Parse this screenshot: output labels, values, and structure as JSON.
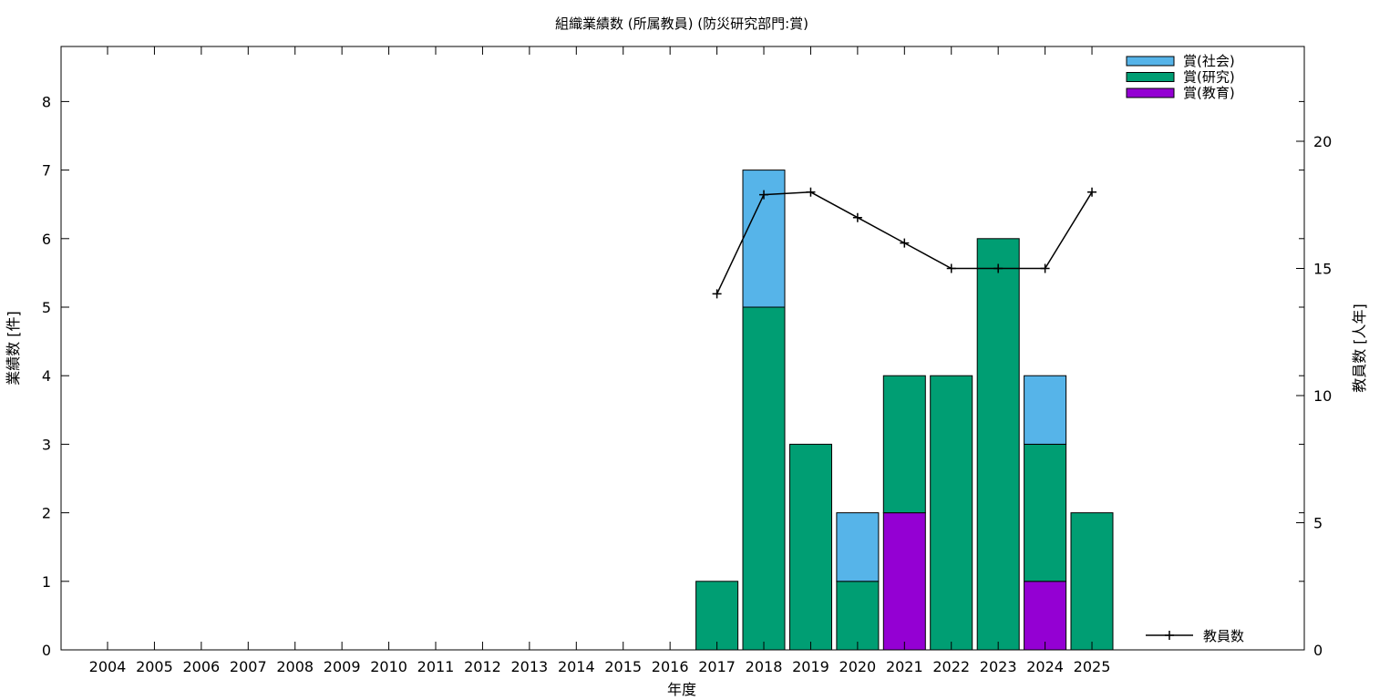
{
  "chart_data": {
    "type": "bar",
    "stacked": true,
    "title": "組織業績数 (所属教員) (防災研究部門:賞)",
    "xlabel": "年度",
    "ylabel": "業績数 [件]",
    "y2label": "教員数 [人年]",
    "ylim": [
      0,
      8.8
    ],
    "y2lim": [
      0,
      24
    ],
    "yticks": [
      0,
      1,
      2,
      3,
      4,
      5,
      6,
      7,
      8
    ],
    "y2ticks": [
      0,
      5,
      10,
      15,
      20
    ],
    "categories": [
      "2004",
      "2005",
      "2006",
      "2007",
      "2008",
      "2009",
      "2010",
      "2011",
      "2012",
      "2013",
      "2014",
      "2015",
      "2016",
      "2017",
      "2018",
      "2019",
      "2020",
      "2021",
      "2022",
      "2023",
      "2024",
      "2025"
    ],
    "series": [
      {
        "name": "賞(教育)",
        "color": "#9400d3",
        "values": [
          0,
          0,
          0,
          0,
          0,
          0,
          0,
          0,
          0,
          0,
          0,
          0,
          0,
          0,
          0,
          0,
          0,
          2,
          0,
          0,
          1,
          0
        ]
      },
      {
        "name": "賞(研究)",
        "color": "#009e73",
        "values": [
          0,
          0,
          0,
          0,
          0,
          0,
          0,
          0,
          0,
          0,
          0,
          0,
          0,
          1,
          5,
          3,
          1,
          2,
          4,
          6,
          2,
          2
        ]
      },
      {
        "name": "賞(社会)",
        "color": "#56b4e9",
        "values": [
          0,
          0,
          0,
          0,
          0,
          0,
          0,
          0,
          0,
          0,
          0,
          0,
          0,
          0,
          2,
          0,
          1,
          0,
          0,
          0,
          1,
          0
        ]
      }
    ],
    "legend_order": [
      "賞(社会)",
      "賞(研究)",
      "賞(教育)"
    ],
    "legend_position": "top-right",
    "line_series": {
      "name": "教員数",
      "axis": "y2",
      "color": "#000000",
      "x": [
        "2017",
        "2018",
        "2019",
        "2020",
        "2021",
        "2022",
        "2023",
        "2024",
        "2025"
      ],
      "values": [
        14,
        17.9,
        18,
        17,
        16,
        15,
        15,
        15,
        18
      ]
    },
    "line_legend_position": "bottom-right",
    "grid": false
  }
}
